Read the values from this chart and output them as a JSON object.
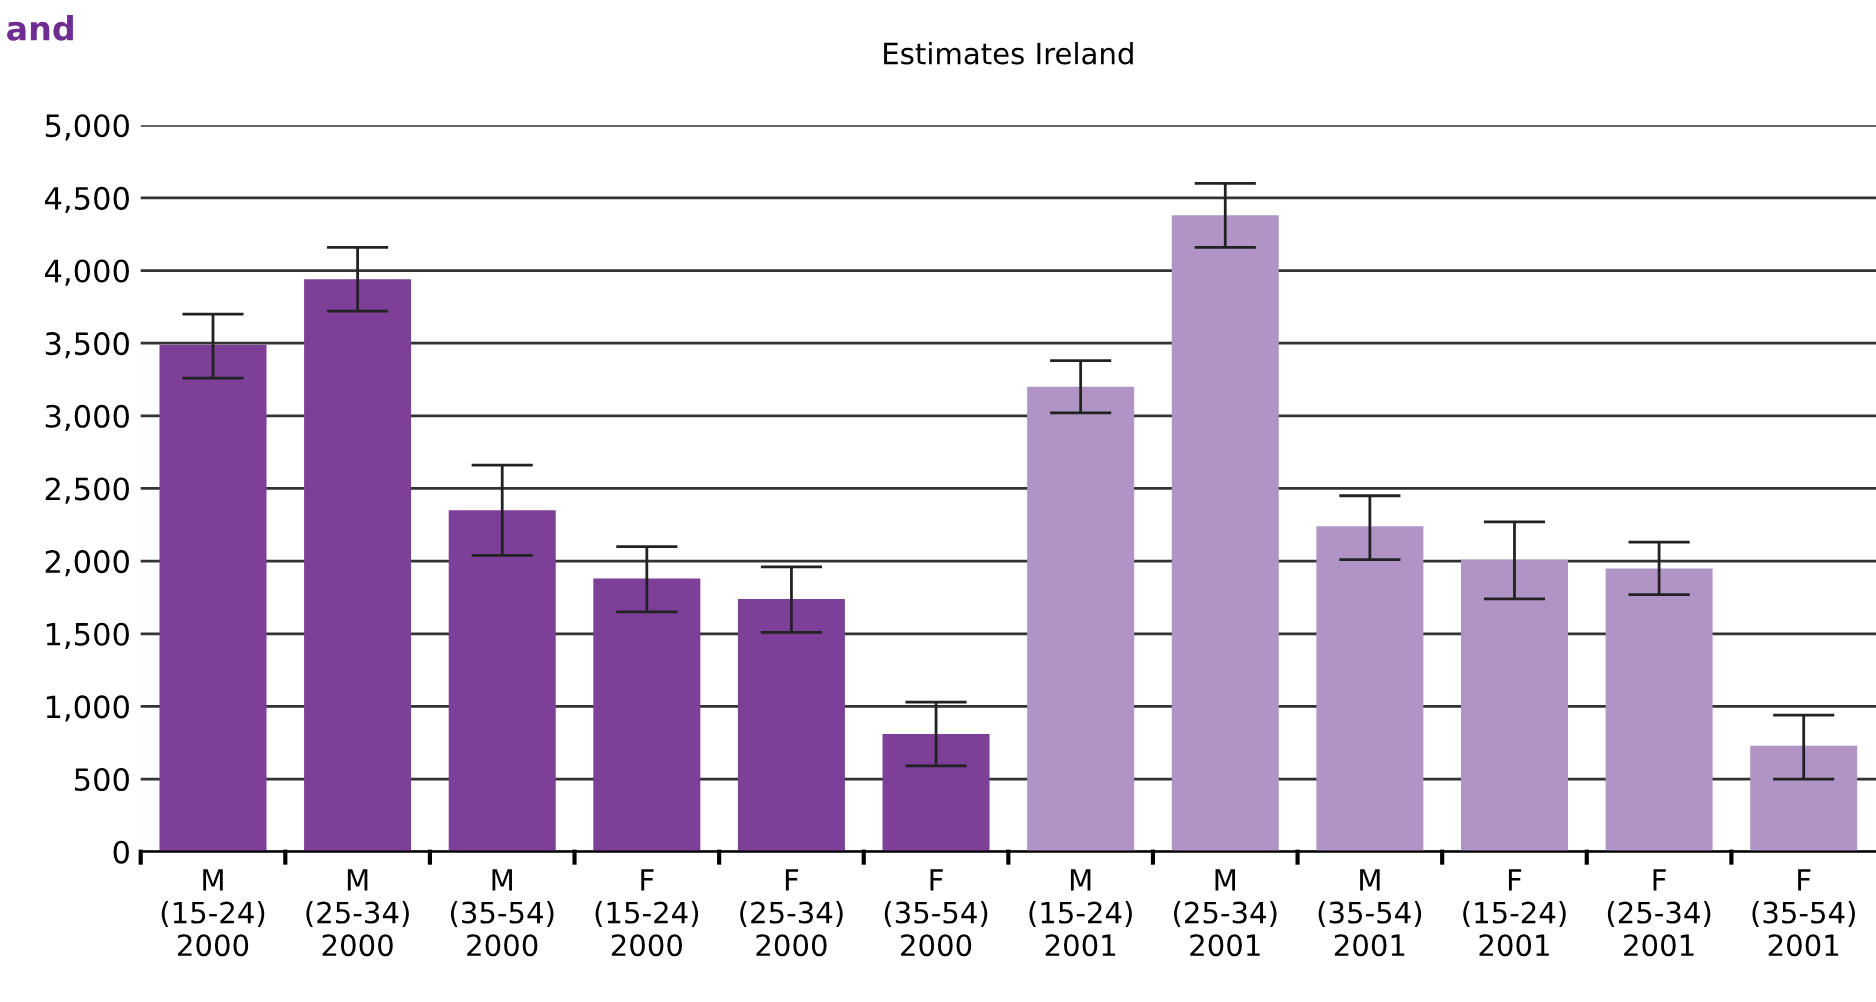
{
  "chart_data": {
    "type": "bar",
    "title": "Estimates Ireland",
    "annotations": [
      "and"
    ],
    "categories": [
      "M\n(15-24)\n2000",
      "M\n(25-34)\n2000",
      "M\n(35-54)\n2000",
      "F\n(15-24)\n2000",
      "F\n(25-34)\n2000",
      "F\n(35-54)\n2000",
      "M\n(15-24)\n2001",
      "M\n(25-34)\n2001",
      "M\n(35-54)\n2001",
      "F\n(15-24)\n2001",
      "F\n(25-34)\n2001",
      "F\n(35-54)\n2001"
    ],
    "values": [
      3490,
      3940,
      2350,
      1880,
      1740,
      810,
      3200,
      4380,
      2240,
      2010,
      1950,
      730
    ],
    "errors": [
      [
        3260,
        3700
      ],
      [
        3720,
        4160
      ],
      [
        2040,
        2660
      ],
      [
        1650,
        2100
      ],
      [
        1510,
        1960
      ],
      [
        590,
        1030
      ],
      [
        3020,
        3380
      ],
      [
        4160,
        4600
      ],
      [
        2010,
        2450
      ],
      [
        1740,
        2270
      ],
      [
        1770,
        2130
      ],
      [
        500,
        940
      ]
    ],
    "colors": [
      "#7d3f98",
      "#7d3f98",
      "#7d3f98",
      "#7d3f98",
      "#7d3f98",
      "#7d3f98",
      "#b094c6",
      "#b094c6",
      "#b094c6",
      "#b094c6",
      "#b094c6",
      "#b094c6"
    ],
    "ylim": [
      0,
      5000
    ],
    "yticks": [
      0,
      {
        "value": 500,
        "label": "500"
      },
      {
        "value": 1000,
        "label": "1,000"
      },
      {
        "value": 1500,
        "label": "1,500"
      },
      {
        "value": 2000,
        "label": "2,000"
      },
      {
        "value": 2500,
        "label": "2,500"
      },
      {
        "value": 3000,
        "label": "3,000"
      },
      {
        "value": 3500,
        "label": "3,500"
      },
      {
        "value": 4000,
        "label": "4,000"
      },
      {
        "value": 4500,
        "label": "4,500"
      },
      {
        "value": 5000,
        "label": "5,000"
      }
    ],
    "grid": "y",
    "legend": false
  }
}
